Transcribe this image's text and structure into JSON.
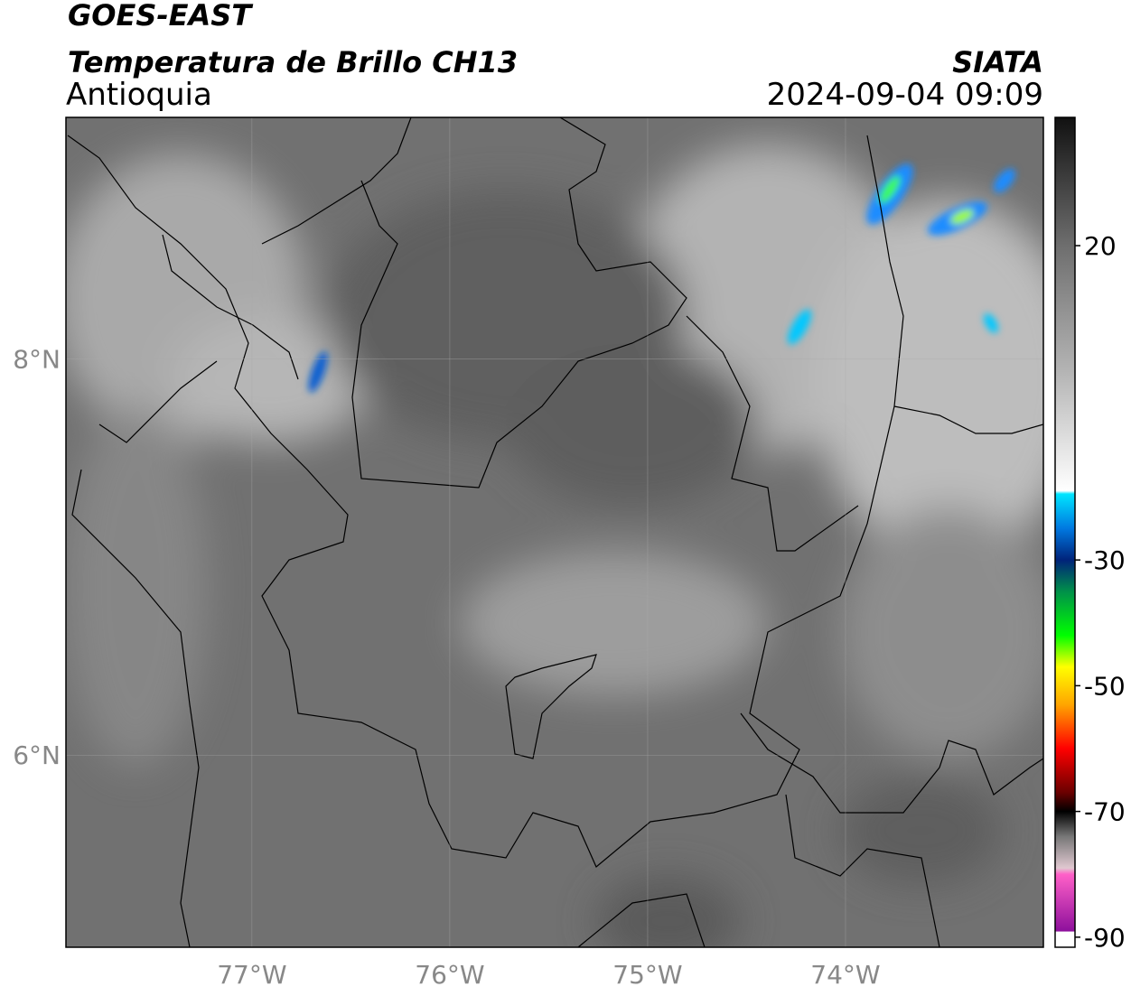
{
  "chart_data": {
    "type": "map",
    "title": "GOES-EAST",
    "subtitle": "Temperatura de Brillo CH13",
    "region": "Antioquia",
    "source": "SIATA",
    "datetime": "2024-09-04 09:09",
    "xlim": [
      -77.94,
      -73.0
    ],
    "ylim": [
      5.03,
      9.22
    ],
    "xticks": [
      {
        "value": -77,
        "label": "77°W"
      },
      {
        "value": -76,
        "label": "76°W"
      },
      {
        "value": -75,
        "label": "75°W"
      },
      {
        "value": -74,
        "label": "74°W"
      }
    ],
    "yticks": [
      {
        "value": 6,
        "label": "6°N"
      },
      {
        "value": 8,
        "label": "8°N"
      }
    ],
    "grid": true,
    "colorbar": {
      "lim": [
        -91.6,
        40.4
      ],
      "ticks": [
        20,
        -30,
        -50,
        -70,
        -90
      ],
      "stops": [
        {
          "value": 40.4,
          "color": "#111111"
        },
        {
          "value": 20,
          "color": "#6e6e6e"
        },
        {
          "value": 0,
          "color": "#b4b4b4"
        },
        {
          "value": -19,
          "color": "#ffffff"
        },
        {
          "value": -19.5,
          "color": "#00e5ff"
        },
        {
          "value": -25,
          "color": "#0078e0"
        },
        {
          "value": -30,
          "color": "#00237a"
        },
        {
          "value": -35,
          "color": "#00904a"
        },
        {
          "value": -42,
          "color": "#00ff00"
        },
        {
          "value": -47,
          "color": "#ffff00"
        },
        {
          "value": -53,
          "color": "#ffa500"
        },
        {
          "value": -60,
          "color": "#ff0000"
        },
        {
          "value": -67,
          "color": "#6a0000"
        },
        {
          "value": -70,
          "color": "#000000"
        },
        {
          "value": -74,
          "color": "#777777"
        },
        {
          "value": -79,
          "color": "#e0c8d0"
        },
        {
          "value": -80,
          "color": "#ff60c8"
        },
        {
          "value": -89,
          "color": "#8e109c"
        },
        {
          "value": -89.2,
          "color": "#ffffff"
        },
        {
          "value": -91.6,
          "color": "#ffffff"
        }
      ]
    }
  }
}
